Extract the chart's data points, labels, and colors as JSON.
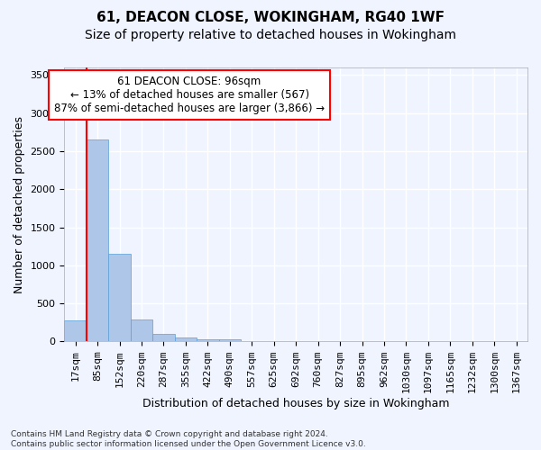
{
  "title_line1": "61, DEACON CLOSE, WOKINGHAM, RG40 1WF",
  "title_line2": "Size of property relative to detached houses in Wokingham",
  "xlabel": "Distribution of detached houses by size in Wokingham",
  "ylabel": "Number of detached properties",
  "footnote": "Contains HM Land Registry data © Crown copyright and database right 2024.\nContains public sector information licensed under the Open Government Licence v3.0.",
  "bin_labels": [
    "17sqm",
    "85sqm",
    "152sqm",
    "220sqm",
    "287sqm",
    "355sqm",
    "422sqm",
    "490sqm",
    "557sqm",
    "625sqm",
    "692sqm",
    "760sqm",
    "827sqm",
    "895sqm",
    "962sqm",
    "1030sqm",
    "1097sqm",
    "1165sqm",
    "1232sqm",
    "1300sqm",
    "1367sqm"
  ],
  "bar_values": [
    280,
    2650,
    1150,
    285,
    100,
    55,
    35,
    30,
    0,
    0,
    0,
    0,
    0,
    0,
    0,
    0,
    0,
    0,
    0,
    0,
    0
  ],
  "bar_color": "#aec6e8",
  "bar_edge_color": "#5a9fd4",
  "vline_position": 0.5,
  "vline_color": "red",
  "ylim": [
    0,
    3600
  ],
  "yticks": [
    0,
    500,
    1000,
    1500,
    2000,
    2500,
    3000,
    3500
  ],
  "annotation_text": "61 DEACON CLOSE: 96sqm\n← 13% of detached houses are smaller (567)\n87% of semi-detached houses are larger (3,866) →",
  "annotation_box_color": "white",
  "annotation_box_edge_color": "red",
  "bg_color": "#f0f4ff",
  "grid_color": "white",
  "title_fontsize": 11,
  "subtitle_fontsize": 10,
  "axis_label_fontsize": 9,
  "tick_fontsize": 8,
  "annotation_fontsize": 8.5
}
